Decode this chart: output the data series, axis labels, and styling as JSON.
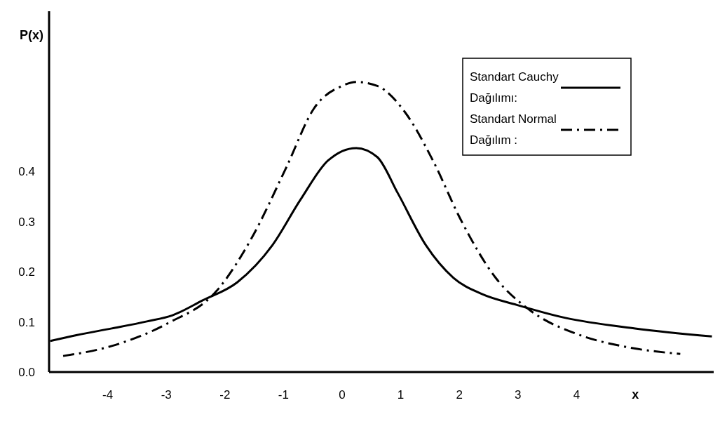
{
  "chart_data": {
    "type": "line",
    "xlabel": "x",
    "ylabel": "P(x)",
    "xlim": [
      -5,
      6.4
    ],
    "ylim": [
      0,
      0.72
    ],
    "xticks": [
      -4,
      -3,
      -2,
      -1,
      0,
      1,
      2,
      3,
      4
    ],
    "yticks": [
      {
        "value": 0,
        "label": "0.0"
      },
      0.1,
      0.2,
      0.3,
      0.4
    ],
    "grid": false,
    "legend": "top right",
    "series": [
      {
        "name": "Standart Cauchy Dağılımı:",
        "color": "#000000",
        "line_style": "solid",
        "x": [
          -4.98,
          -4.52,
          -3.93,
          -3.33,
          -2.9,
          -2.38,
          -1.79,
          -1.19,
          -0.71,
          -0.24,
          0.24,
          0.6,
          0.95,
          1.43,
          1.9,
          2.38,
          2.98,
          3.81,
          5.0,
          6.31
        ],
        "values": [
          0.062,
          0.074,
          0.087,
          0.101,
          0.113,
          0.143,
          0.179,
          0.253,
          0.344,
          0.422,
          0.447,
          0.429,
          0.357,
          0.253,
          0.188,
          0.156,
          0.134,
          0.108,
          0.087,
          0.071
        ]
      },
      {
        "name": "Standart Normal Dağılım :",
        "color": "#000000",
        "line_style": "dashdot",
        "x": [
          -4.76,
          -3.93,
          -2.98,
          -2.14,
          -1.55,
          -0.95,
          -0.48,
          0,
          0.24,
          0.6,
          1.07,
          1.55,
          2.02,
          2.62,
          3.21,
          4.05,
          4.76,
          5.77
        ],
        "values": [
          0.032,
          0.052,
          0.097,
          0.162,
          0.266,
          0.409,
          0.526,
          0.571,
          0.579,
          0.571,
          0.519,
          0.422,
          0.305,
          0.188,
          0.123,
          0.074,
          0.052,
          0.036
        ]
      }
    ]
  }
}
